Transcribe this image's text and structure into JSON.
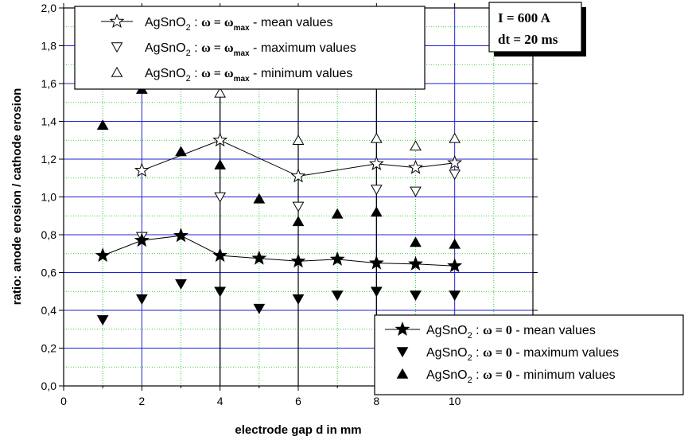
{
  "chart_data": {
    "type": "scatter",
    "xlabel": "electrode gap d in mm",
    "ylabel": "ratio: anode erosion / cathode erosion",
    "xlim": [
      0,
      12
    ],
    "ylim": [
      0,
      2.0
    ],
    "x_ticks": [
      0,
      2,
      4,
      6,
      8,
      10
    ],
    "x_tick_labels": [
      "0",
      "2",
      "4",
      "6",
      "8",
      "10"
    ],
    "y_ticks": [
      0,
      0.2,
      0.4,
      0.6,
      0.8,
      1.0,
      1.2,
      1.4,
      1.6,
      1.8,
      2.0
    ],
    "y_tick_labels": [
      "0,0",
      "0,2",
      "0,4",
      "0,6",
      "0,8",
      "1,0",
      "1,2",
      "1,4",
      "1,6",
      "1,8",
      "2,0"
    ],
    "grid": true,
    "annotation": {
      "line1": "I = 600 A",
      "line2": "dt = 20 ms"
    },
    "legend_top": {
      "placement": "top-left",
      "entries": [
        {
          "material": "AgSnO",
          "sub": "2",
          "sep": " : ",
          "omega": "ω = ω",
          "omega_sub": "max",
          "desc": " - mean values"
        },
        {
          "material": "AgSnO",
          "sub": "2",
          "sep": " : ",
          "omega": "ω = ω",
          "omega_sub": "max",
          "desc": " - maximum values"
        },
        {
          "material": "AgSnO",
          "sub": "2",
          "sep": " : ",
          "omega": "ω = ω",
          "omega_sub": "max",
          "desc": " - minimum values"
        }
      ]
    },
    "legend_bottom": {
      "placement": "bottom-right",
      "entries": [
        {
          "material": "AgSnO",
          "sub": "2",
          "sep": " : ",
          "omega": "ω = 0",
          "desc": " - mean values"
        },
        {
          "material": "AgSnO",
          "sub": "2",
          "sep": " : ",
          "omega": "ω = 0",
          "desc": " - maximum values"
        },
        {
          "material": "AgSnO",
          "sub": "2",
          "sep": " : ",
          "omega": "ω = 0",
          "desc": " - minimum values"
        }
      ]
    },
    "series": [
      {
        "marker": "open-star",
        "line": true,
        "x": [
          2,
          4,
          6,
          8,
          9,
          10
        ],
        "y": [
          1.14,
          1.3,
          1.11,
          1.175,
          1.155,
          1.18
        ]
      },
      {
        "marker": "open-triangle-down",
        "line": false,
        "x": [
          2,
          4,
          6,
          8,
          9,
          10
        ],
        "y": [
          0.79,
          1.0,
          0.95,
          1.04,
          1.03,
          1.12
        ]
      },
      {
        "marker": "open-triangle-up",
        "line": false,
        "x": [
          2,
          4,
          6,
          8,
          9,
          10
        ],
        "y": [
          1.63,
          1.55,
          1.3,
          1.31,
          1.27,
          1.31
        ]
      },
      {
        "marker": "filled-star",
        "line": true,
        "x": [
          1,
          2,
          3,
          4,
          5,
          6,
          7,
          8,
          9,
          10
        ],
        "y": [
          0.69,
          0.77,
          0.795,
          0.69,
          0.675,
          0.66,
          0.67,
          0.65,
          0.645,
          0.635
        ]
      },
      {
        "marker": "filled-triangle-down",
        "line": false,
        "x": [
          1,
          2,
          3,
          4,
          5,
          6,
          7,
          8,
          9,
          10
        ],
        "y": [
          0.35,
          0.46,
          0.54,
          0.5,
          0.41,
          0.46,
          0.48,
          0.5,
          0.48,
          0.48
        ]
      },
      {
        "marker": "filled-triangle-up",
        "line": false,
        "x": [
          1,
          2,
          3,
          4,
          5,
          6,
          7,
          8,
          9,
          10
        ],
        "y": [
          1.38,
          1.57,
          1.24,
          1.17,
          0.99,
          0.87,
          0.91,
          0.92,
          0.76,
          0.75
        ]
      }
    ]
  }
}
